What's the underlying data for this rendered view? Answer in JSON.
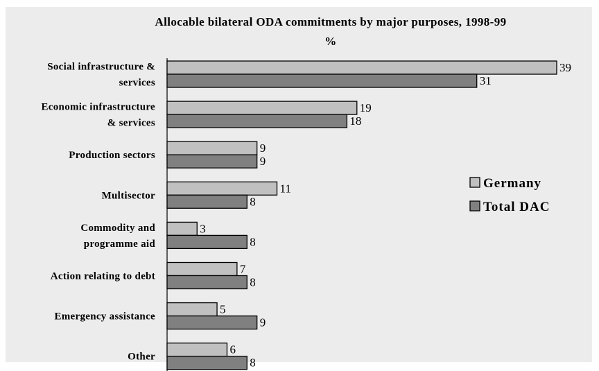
{
  "chart_data": {
    "type": "bar",
    "orientation": "horizontal",
    "title": "Allocable bilateral ODA commitments by major purposes, 1998-99",
    "subtitle": "%",
    "categories": [
      [
        "Social infrastructure &",
        "services"
      ],
      [
        "Economic infrastructure",
        "& services"
      ],
      [
        "Production sectors"
      ],
      [
        "Multisector"
      ],
      [
        "Commodity and",
        "programme aid"
      ],
      [
        "Action relating to debt"
      ],
      [
        "Emergency assistance"
      ],
      [
        "Other"
      ]
    ],
    "series": [
      {
        "name": "Germany",
        "color": "#c0c0c0",
        "values": [
          39,
          19,
          9,
          11,
          3,
          7,
          5,
          6
        ]
      },
      {
        "name": "Total DAC",
        "color": "#808080",
        "values": [
          31,
          18,
          9,
          8,
          8,
          8,
          9,
          8
        ]
      }
    ],
    "xlim": [
      0,
      39
    ],
    "grid": false,
    "legend_position": "right",
    "data_labels": true
  }
}
